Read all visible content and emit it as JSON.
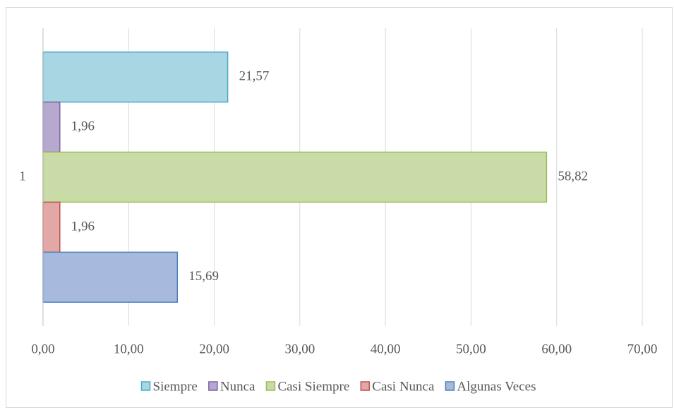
{
  "chart_data": {
    "type": "bar",
    "orientation": "horizontal",
    "categories": [
      "1"
    ],
    "series": [
      {
        "name": "Siempre",
        "color": "#a9d6e3",
        "edge_color": "#4bacc6",
        "values": [
          21.57
        ],
        "value_labels": [
          "21,57"
        ]
      },
      {
        "name": "Nunca",
        "color": "#b7a8cf",
        "edge_color": "#8064a2",
        "values": [
          1.96
        ],
        "value_labels": [
          "1,96"
        ]
      },
      {
        "name": "Casi Siempre",
        "color": "#c9dca8",
        "edge_color": "#9bbb59",
        "values": [
          58.82
        ],
        "value_labels": [
          "58,82"
        ]
      },
      {
        "name": "Casi Nunca",
        "color": "#e3a7a5",
        "edge_color": "#c0504d",
        "values": [
          1.96
        ],
        "value_labels": [
          "1,96"
        ]
      },
      {
        "name": "Algunas Veces",
        "color": "#a7b9dc",
        "edge_color": "#4f81bd",
        "values": [
          15.69
        ],
        "value_labels": [
          "15,69"
        ]
      }
    ],
    "xlim": [
      0,
      70
    ],
    "xticks": [
      {
        "value": 0,
        "label": "0,00"
      },
      {
        "value": 10,
        "label": "10,00"
      },
      {
        "value": 20,
        "label": "20,00"
      },
      {
        "value": 30,
        "label": "30,00"
      },
      {
        "value": 40,
        "label": "40,00"
      },
      {
        "value": 50,
        "label": "50,00"
      },
      {
        "value": 60,
        "label": "60,00"
      },
      {
        "value": 70,
        "label": "70,00"
      }
    ],
    "grid": true,
    "legend": "bottom"
  }
}
